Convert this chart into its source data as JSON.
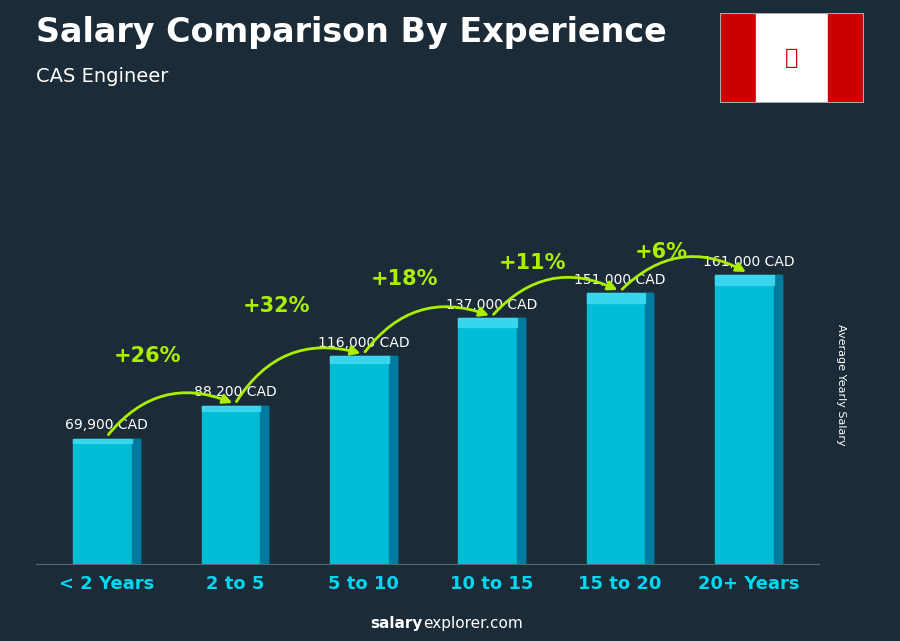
{
  "title": "Salary Comparison By Experience",
  "subtitle": "CAS Engineer",
  "categories": [
    "< 2 Years",
    "2 to 5",
    "5 to 10",
    "10 to 15",
    "15 to 20",
    "20+ Years"
  ],
  "values": [
    69900,
    88200,
    116000,
    137000,
    151000,
    161000
  ],
  "value_labels": [
    "69,900 CAD",
    "88,200 CAD",
    "116,000 CAD",
    "137,000 CAD",
    "151,000 CAD",
    "161,000 CAD"
  ],
  "pct_labels": [
    "+26%",
    "+32%",
    "+18%",
    "+11%",
    "+6%"
  ],
  "bar_color_main": "#00bcd4",
  "bar_color_dark": "#007a9e",
  "bar_color_light": "#40d8f0",
  "ylabel_rotated": "Average Yearly Salary",
  "watermark_bold": "salary",
  "watermark_normal": "explorer.com",
  "bg_color": "#1c2b38",
  "title_color": "#ffffff",
  "subtitle_color": "#ffffff",
  "label_color": "#ffffff",
  "pct_color": "#aaee00",
  "arrow_color": "#aaee00",
  "cat_label_color": "#00d8f0",
  "ylim_max": 200000,
  "bar_bottom": 0,
  "title_fontsize": 24,
  "subtitle_fontsize": 14,
  "pct_fontsize": 15,
  "val_fontsize": 10,
  "cat_fontsize": 13
}
